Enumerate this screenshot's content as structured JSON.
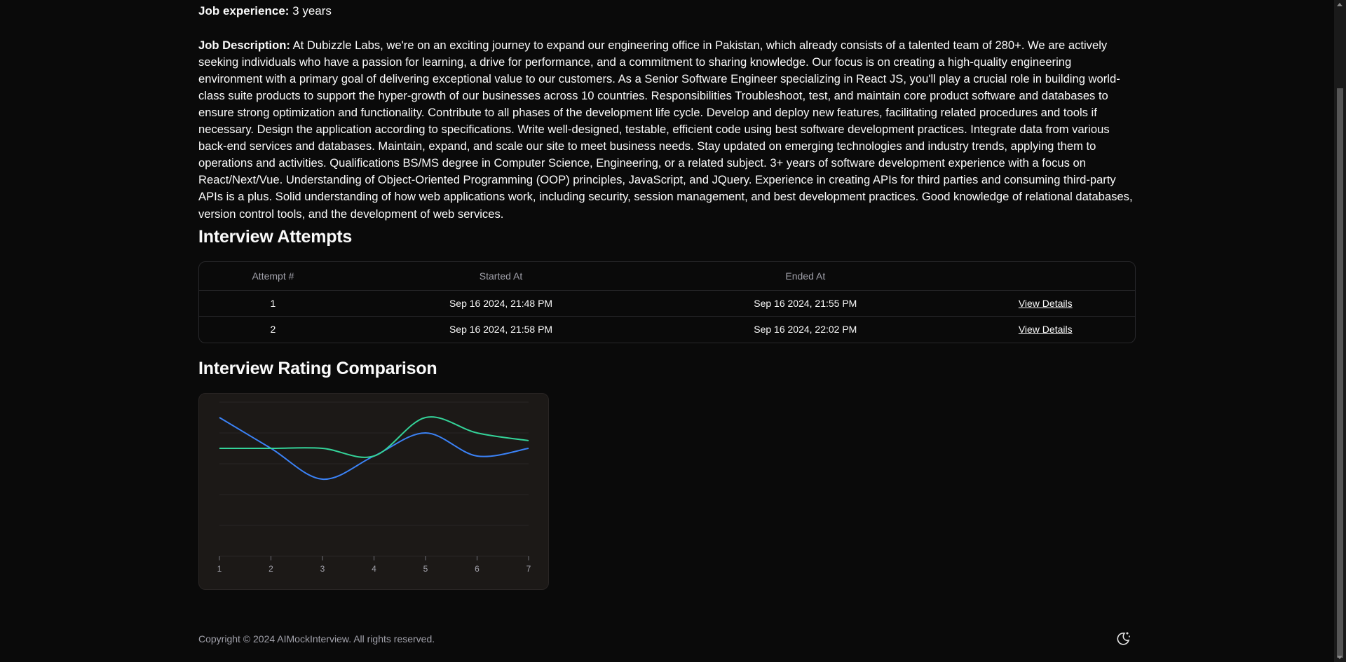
{
  "job": {
    "experience_label": "Job experience:",
    "experience_value": " 3 years",
    "description_label": "Job Description:",
    "description_value": " At Dubizzle Labs, we're on an exciting journey to expand our engineering office in Pakistan, which already consists of a talented team of 280+. We are actively seeking individuals who have a passion for learning, a drive for performance, and a commitment to sharing knowledge. Our focus is on creating a high-quality engineering environment with a primary goal of delivering exceptional value to our customers. As a Senior Software Engineer specializing in React JS, you'll play a crucial role in building world-class suite products to support the hyper-growth of our businesses across 10 countries. Responsibilities Troubleshoot, test, and maintain core product software and databases to ensure strong optimization and functionality. Contribute to all phases of the development life cycle. Develop and deploy new features, facilitating related procedures and tools if necessary. Design the application according to specifications. Write well-designed, testable, efficient code using best software development practices. Integrate data from various back-end services and databases. Maintain, expand, and scale our site to meet business needs. Stay updated on emerging technologies and industry trends, applying them to operations and activities. Qualifications BS/MS degree in Computer Science, Engineering, or a related subject. 3+ years of software development experience with a focus on React/Next/Vue. Understanding of Object-Oriented Programming (OOP) principles, JavaScript, and JQuery. Experience in creating APIs for third parties and consuming third-party APIs is a plus. Solid understanding of how web applications work, including security, session management, and best development practices. Good knowledge of relational databases, version control tools, and the development of web services."
  },
  "attempts": {
    "heading": "Interview Attempts",
    "columns": [
      "Attempt #",
      "Started At",
      "Ended At",
      ""
    ],
    "rows": [
      {
        "num": "1",
        "started": "Sep 16 2024, 21:48 PM",
        "ended": "Sep 16 2024, 21:55 PM",
        "action": "View Details"
      },
      {
        "num": "2",
        "started": "Sep 16 2024, 21:58 PM",
        "ended": "Sep 16 2024, 22:02 PM",
        "action": "View Details"
      }
    ]
  },
  "rating": {
    "heading": "Interview Rating Comparison"
  },
  "chart_data": {
    "type": "line",
    "x": [
      1,
      2,
      3,
      4,
      5,
      6,
      7
    ],
    "ylim": [
      0,
      10
    ],
    "grid": true,
    "series": [
      {
        "color": "#3b82f6",
        "values": [
          9,
          7,
          5,
          6.5,
          8,
          6.5,
          7
        ]
      },
      {
        "color": "#34d399",
        "values": [
          7,
          7,
          7,
          6.5,
          9,
          8,
          7.5
        ]
      }
    ]
  },
  "footer": {
    "copyright": "Copyright © 2024 AIMockInterview. All rights reserved."
  },
  "icons": {
    "theme_toggle": "moon-sun-icon"
  }
}
